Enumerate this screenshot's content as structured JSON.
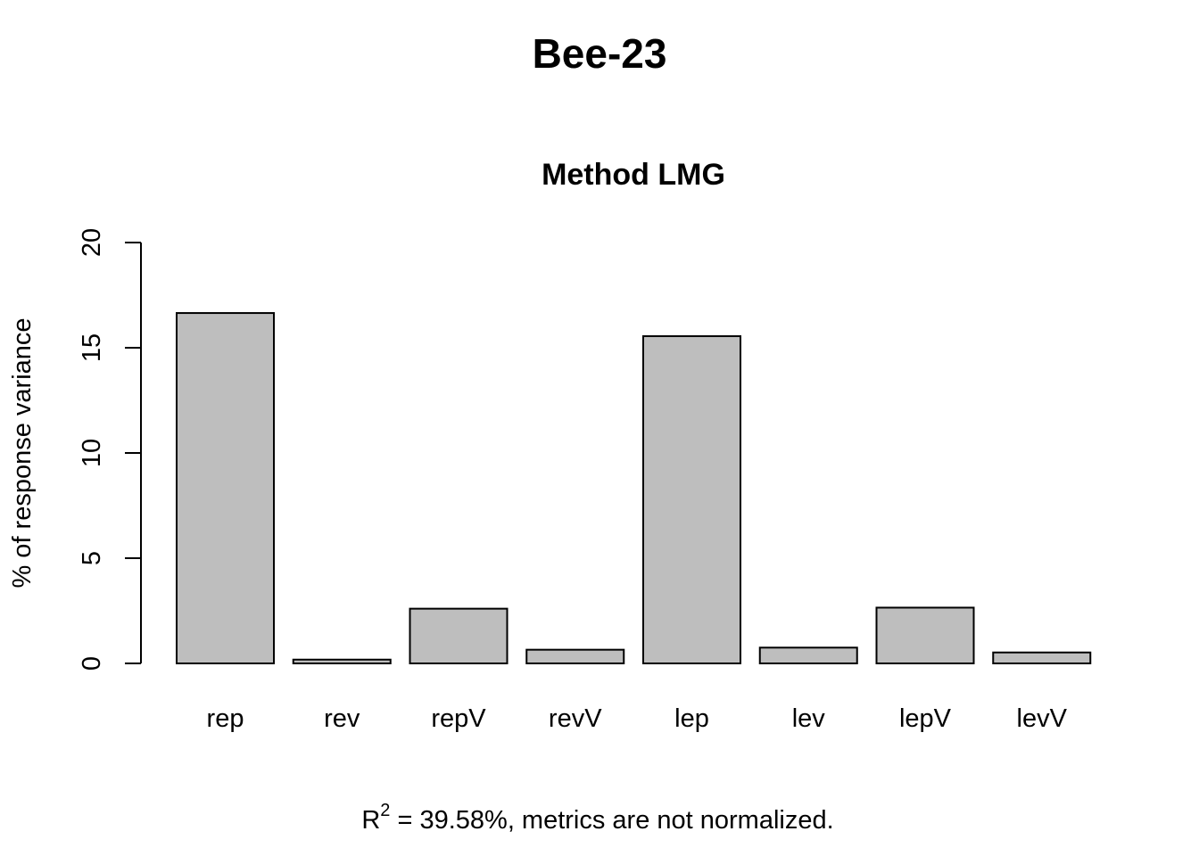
{
  "chart_data": {
    "type": "bar",
    "title": "Bee-23",
    "subtitle": "Method LMG",
    "xlabel": "",
    "ylabel": "% of response variance",
    "ylim": [
      0,
      20
    ],
    "yticks": [
      0,
      5,
      10,
      15,
      20
    ],
    "categories": [
      "rep",
      "rev",
      "repV",
      "revV",
      "lep",
      "lev",
      "lepV",
      "levV"
    ],
    "values": [
      16.65,
      0.18,
      2.6,
      0.65,
      15.55,
      0.75,
      2.65,
      0.52
    ],
    "bar_color": "#bebebe",
    "grid": false,
    "legend": "none",
    "footnote": {
      "r": "R",
      "exp": "2",
      "text": " = 39.58%, metrics are not normalized."
    }
  }
}
